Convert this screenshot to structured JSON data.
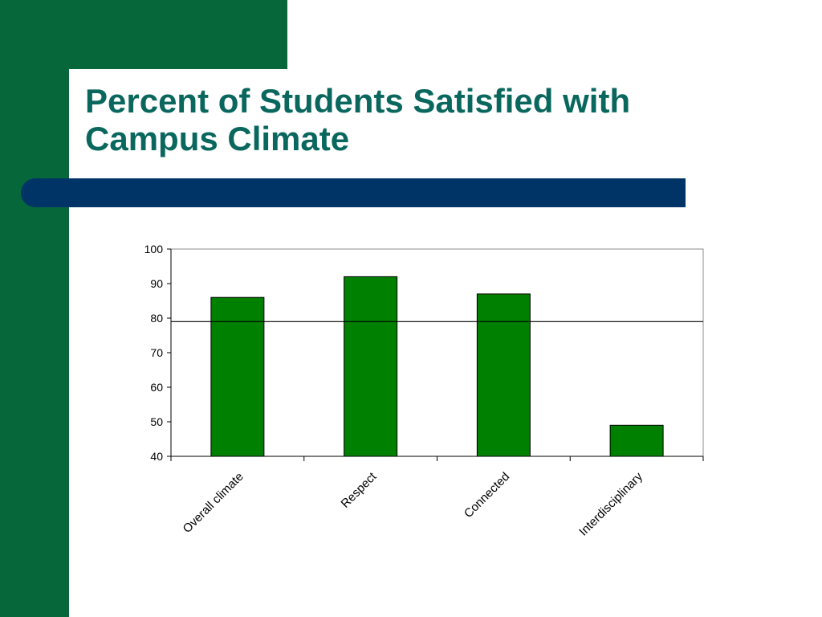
{
  "slide": {
    "title_line1": "Percent of Students Satisfied with",
    "title_line2": "Campus Climate",
    "colors": {
      "side_green": "#05673a",
      "title_teal": "#09675e",
      "bar_navy": "#003366"
    }
  },
  "chart_data": {
    "type": "bar",
    "title": "",
    "xlabel": "",
    "ylabel": "",
    "categories": [
      "Overall climate",
      "Respect",
      "Connected",
      "Interdisciplinary"
    ],
    "values": [
      86,
      92,
      87,
      49
    ],
    "ylim": [
      40,
      100
    ],
    "yticks": [
      40,
      50,
      60,
      70,
      80,
      90,
      100
    ],
    "reference_line": 79,
    "grid": false,
    "legend": "none",
    "bar_color": "#008000"
  }
}
